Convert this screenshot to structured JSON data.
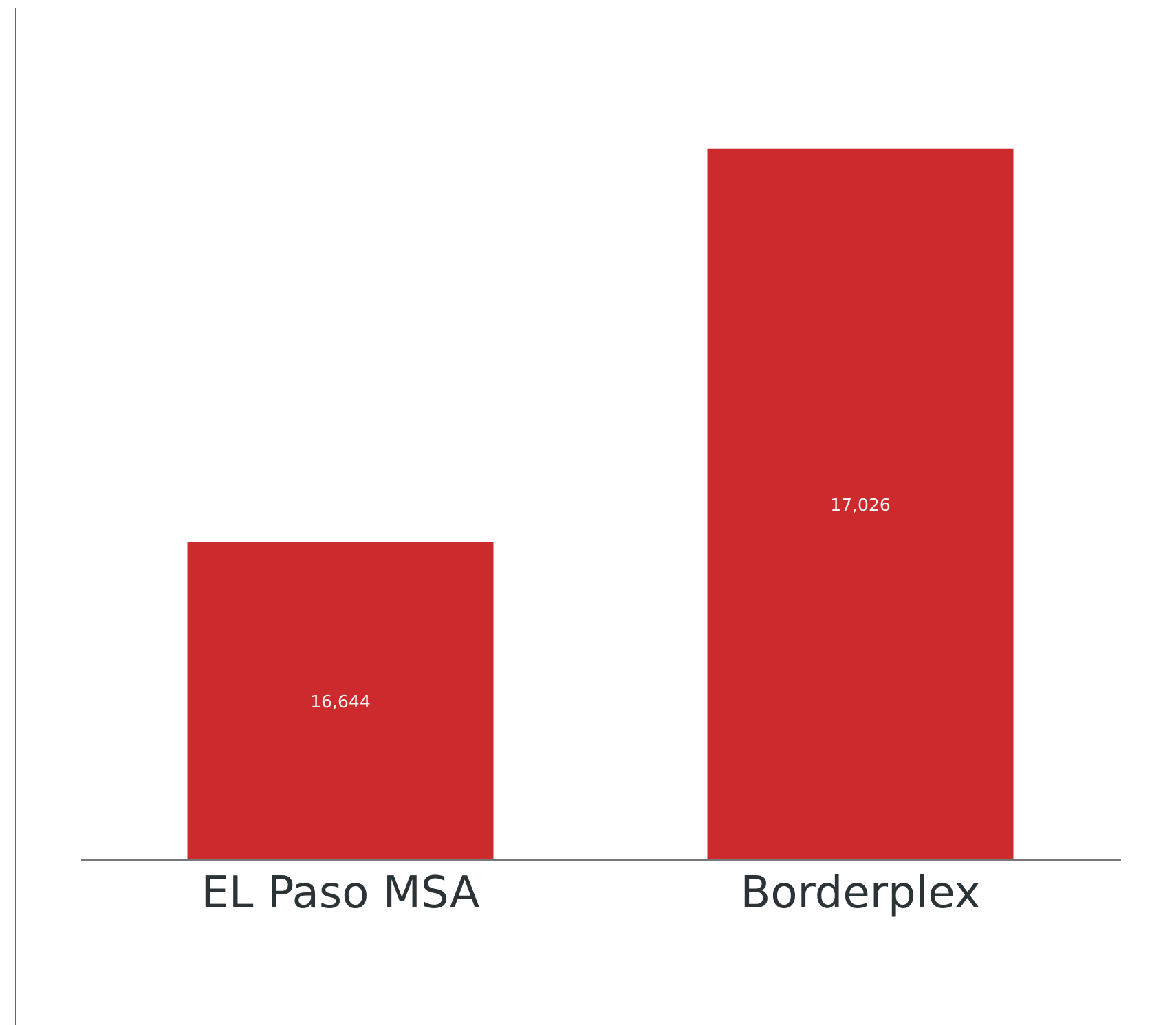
{
  "chart_data": {
    "type": "bar",
    "title": "",
    "xlabel": "",
    "ylabel": "",
    "categories": [
      "EL Paso MSA",
      "Borderplex"
    ],
    "values": [
      16644,
      17026
    ],
    "value_labels": [
      "16,644",
      "17,026"
    ],
    "ylim": [
      16335,
      17104
    ],
    "grid": false,
    "bar_color": "#cd2a2d",
    "axis_color": "#777777",
    "frame_color": "#3a7a6a"
  }
}
